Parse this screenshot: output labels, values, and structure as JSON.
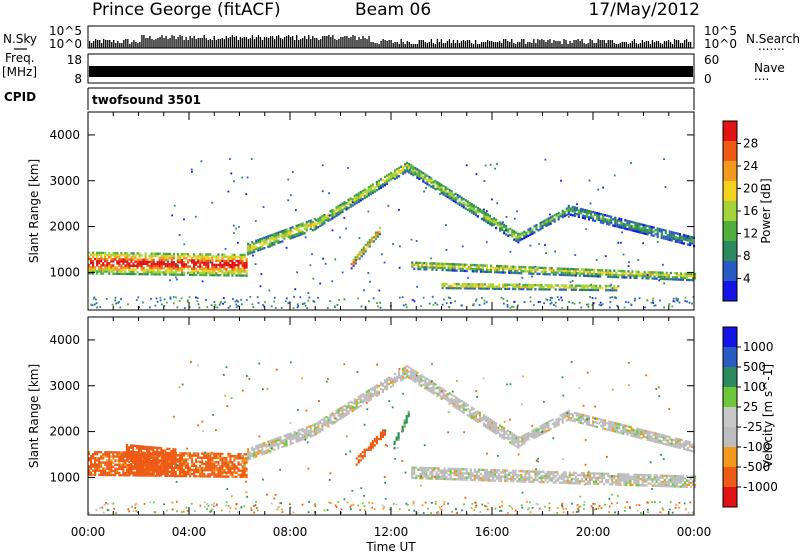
{
  "header": {
    "station": "Prince George (fitACF)",
    "beam": "Beam 06",
    "date": "17/May/2012"
  },
  "side_labels": {
    "nsky": "N.Sky",
    "nsearch": "N.Search",
    "freq_top": "Freq.",
    "freq_unit": "[MHz]",
    "nave": "Nave",
    "cpid": "CPID"
  },
  "strip_ticks": {
    "sky_left_hi": "10^5",
    "sky_left_lo": "10^0",
    "sky_right_hi": "10^5",
    "sky_right_lo": "10^0",
    "freq_hi": "18",
    "freq_lo": "8",
    "nave_hi": "60",
    "nave_lo": "0"
  },
  "cpid_text": "twofsound 3501",
  "colors": {
    "power_scale": [
      "#1414e6",
      "#2a5bc4",
      "#2e8a5e",
      "#4fae3c",
      "#a6d23a",
      "#f2d21e",
      "#f29a1e",
      "#ef5a14",
      "#e01414"
    ],
    "velocity_scale": [
      "#e01414",
      "#ef5a14",
      "#f29a1e",
      "#bdbdbd",
      "#c8c8c8",
      "#6cc83a",
      "#2e8a5e",
      "#2a5bc4",
      "#1414e6"
    ],
    "ground_scatter": "#bdbdbd"
  },
  "chart_data": [
    {
      "type": "heatmap",
      "panel": "power",
      "ylabel": "Slant Range [km]",
      "ylim": [
        180,
        4500
      ],
      "yticks": [
        "1000",
        "2000",
        "3000",
        "4000"
      ],
      "xlim_hours": [
        0,
        24
      ],
      "xticks": [
        "00:00",
        "04:00",
        "08:00",
        "12:00",
        "16:00",
        "20:00",
        "00:00"
      ],
      "colorbar_label": "Power [dB]",
      "colorbar_ticks": [
        "28",
        "24",
        "20",
        "16",
        "12",
        "8",
        "4"
      ],
      "colorbar_range": [
        0,
        30
      ],
      "bands": [
        {
          "t0": 0.0,
          "t1": 6.3,
          "r_start": 1200,
          "r_end": 1150,
          "width": 480,
          "strength": 0.95
        },
        {
          "t0": 6.3,
          "t1": 9.0,
          "r_start": 1500,
          "r_end": 2050,
          "width": 240,
          "strength": 0.6
        },
        {
          "t0": 9.0,
          "t1": 12.6,
          "r_start": 2050,
          "r_end": 3300,
          "width": 220,
          "strength": 0.55
        },
        {
          "t0": 12.6,
          "t1": 17.0,
          "r_start": 3300,
          "r_end": 1750,
          "width": 220,
          "strength": 0.5
        },
        {
          "t0": 17.0,
          "t1": 19.0,
          "r_start": 1750,
          "r_end": 2350,
          "width": 180,
          "strength": 0.4
        },
        {
          "t0": 19.0,
          "t1": 24.0,
          "r_start": 2350,
          "r_end": 1650,
          "width": 200,
          "strength": 0.35
        },
        {
          "t0": 12.8,
          "t1": 24.0,
          "r_start": 1150,
          "r_end": 900,
          "width": 180,
          "strength": 0.55
        },
        {
          "t0": 14.0,
          "t1": 21.0,
          "r_start": 700,
          "r_end": 650,
          "width": 120,
          "strength": 0.65
        },
        {
          "t0": 10.4,
          "t1": 11.6,
          "r_start": 1150,
          "r_end": 1950,
          "width": 160,
          "strength": 0.75
        }
      ]
    },
    {
      "type": "heatmap",
      "panel": "velocity",
      "xlabel": "Time UT",
      "ylabel": "Slant Range [km]",
      "ylim": [
        180,
        4500
      ],
      "yticks": [
        "1000",
        "2000",
        "3000",
        "4000"
      ],
      "xlim_hours": [
        0,
        24
      ],
      "xticks": [
        "00:00",
        "04:00",
        "08:00",
        "12:00",
        "16:00",
        "20:00",
        "00:00"
      ],
      "colorbar_label": "Velocity [m s^-1]",
      "colorbar_ticks": [
        "1000",
        "500",
        "100",
        "25",
        "-25",
        "-100",
        "-500",
        "-1000"
      ],
      "colorbar_range": [
        -1000,
        1000
      ],
      "bands": [
        {
          "t0": 0.0,
          "t1": 6.3,
          "r_start": 1300,
          "r_end": 1250,
          "width": 520,
          "v": -120
        },
        {
          "t0": 6.3,
          "t1": 9.0,
          "r_start": 1500,
          "r_end": 2050,
          "width": 260,
          "v": 0
        },
        {
          "t0": 9.0,
          "t1": 12.6,
          "r_start": 2050,
          "r_end": 3300,
          "width": 240,
          "v": 0
        },
        {
          "t0": 12.6,
          "t1": 17.0,
          "r_start": 3300,
          "r_end": 1750,
          "width": 240,
          "v": 0
        },
        {
          "t0": 17.0,
          "t1": 19.0,
          "r_start": 1750,
          "r_end": 2350,
          "width": 200,
          "v": 0
        },
        {
          "t0": 19.0,
          "t1": 24.0,
          "r_start": 2350,
          "r_end": 1650,
          "width": 220,
          "v": 0
        },
        {
          "t0": 12.8,
          "t1": 24.0,
          "r_start": 1100,
          "r_end": 900,
          "width": 260,
          "v": 0
        },
        {
          "t0": 10.6,
          "t1": 11.8,
          "r_start": 1350,
          "r_end": 2050,
          "width": 180,
          "v": -180
        },
        {
          "t0": 12.1,
          "t1": 12.7,
          "r_start": 1700,
          "r_end": 2400,
          "width": 160,
          "v": 110
        },
        {
          "t0": 1.5,
          "t1": 3.5,
          "r_start": 1400,
          "r_end": 1300,
          "width": 600,
          "v": -300
        }
      ]
    }
  ]
}
